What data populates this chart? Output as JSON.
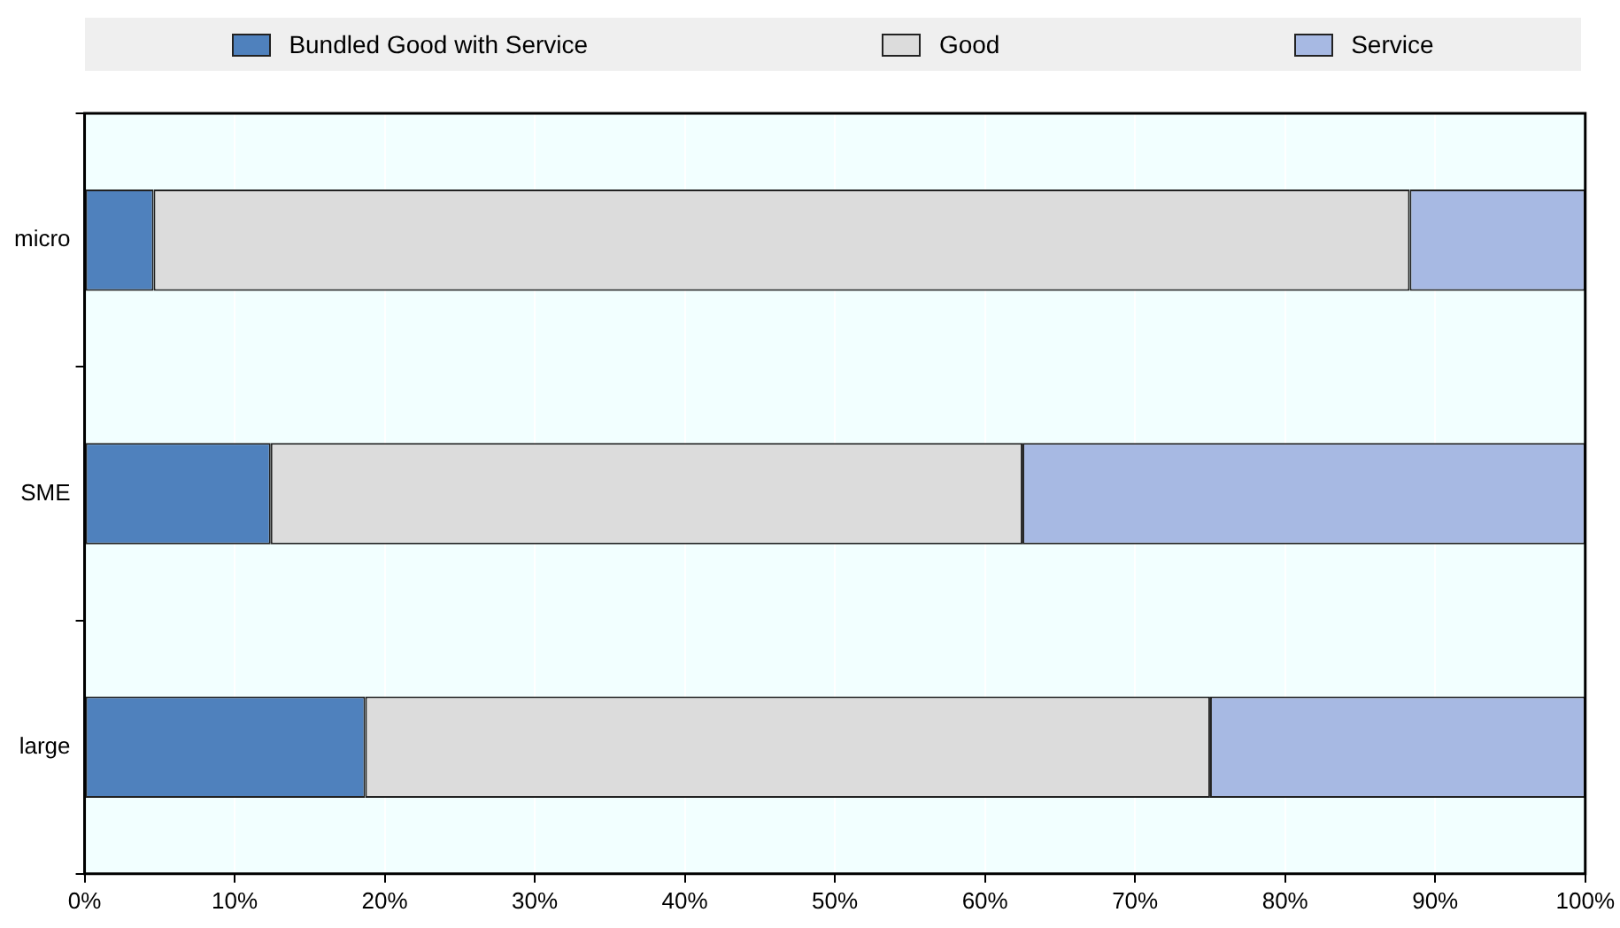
{
  "chart_data": {
    "type": "bar",
    "orientation": "horizontal",
    "stacked": true,
    "categories": [
      "micro",
      "SME",
      "large"
    ],
    "series": [
      {
        "name": "Bundled Good with Service",
        "color": "#4f81bd",
        "values": [
          4.6,
          12.4,
          18.7
        ]
      },
      {
        "name": "Good",
        "color": "#dcdcdc",
        "values": [
          83.7,
          50.1,
          56.3
        ]
      },
      {
        "name": "Service",
        "color": "#a7b9e3",
        "values": [
          11.7,
          37.5,
          25.0
        ]
      }
    ],
    "xlim": [
      0,
      100
    ],
    "xticks": [
      {
        "value": 0,
        "label": "0%"
      },
      {
        "value": 10,
        "label": "10%"
      },
      {
        "value": 20,
        "label": "20%"
      },
      {
        "value": 30,
        "label": "30%"
      },
      {
        "value": 40,
        "label": "40%"
      },
      {
        "value": 50,
        "label": "50%"
      },
      {
        "value": 60,
        "label": "60%"
      },
      {
        "value": 70,
        "label": "70%"
      },
      {
        "value": 80,
        "label": "80%"
      },
      {
        "value": 90,
        "label": "90%"
      },
      {
        "value": 100,
        "label": "100%"
      }
    ],
    "grid": "x",
    "legend": "top"
  }
}
